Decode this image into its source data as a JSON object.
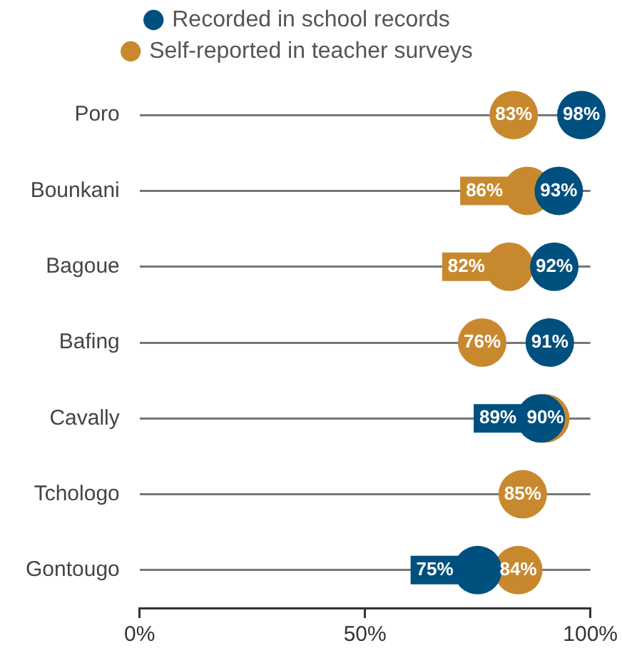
{
  "chart_data": {
    "type": "scatter",
    "orientation": "horizontal",
    "categories": [
      "Poro",
      "Bounkani",
      "Bagoue",
      "Bafing",
      "Cavally",
      "Tchologo",
      "Gontougo"
    ],
    "series": [
      {
        "name": "Recorded in school records",
        "color": "#00507f",
        "values": [
          98,
          93,
          92,
          91,
          89,
          null,
          75
        ],
        "value_labels": [
          "98%",
          "93%",
          "92%",
          "91%",
          "89%",
          null,
          "75%"
        ]
      },
      {
        "name": "Self-reported in teacher surveys",
        "color": "#c8892e",
        "values": [
          83,
          86,
          82,
          76,
          90,
          85,
          84
        ],
        "value_labels": [
          "83%",
          "86%",
          "82%",
          "76%",
          "90%",
          "85%",
          "84%"
        ]
      }
    ],
    "xlim": [
      0,
      100
    ],
    "xticks": [
      {
        "value": 0,
        "label": "0%"
      },
      {
        "value": 50,
        "label": "50%"
      },
      {
        "value": 100,
        "label": "100%"
      }
    ],
    "grid": "y",
    "legend": "top",
    "marker": "circle"
  }
}
